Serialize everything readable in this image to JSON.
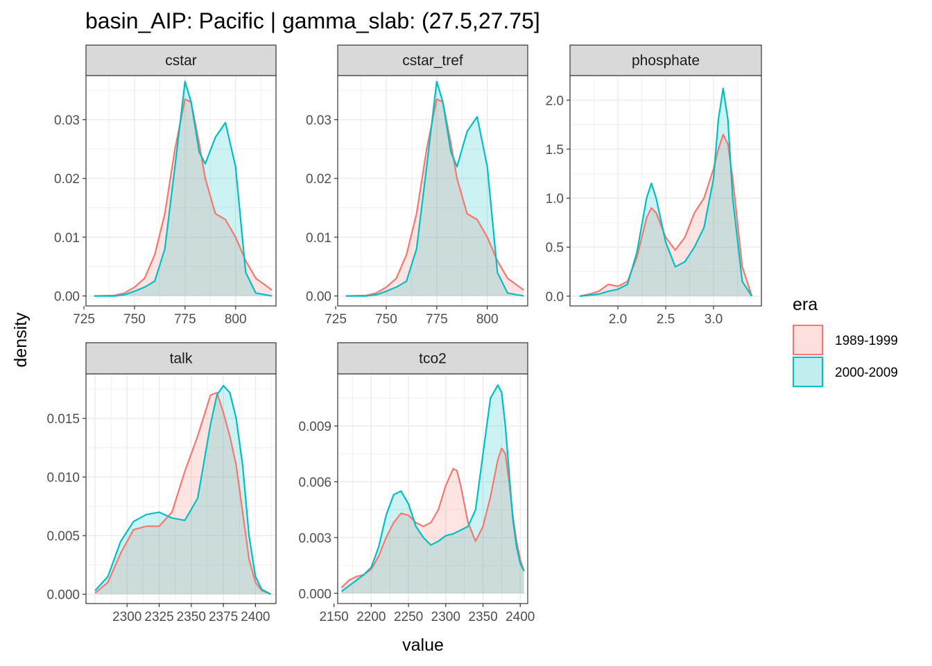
{
  "title": "basin_AIP: Pacific | gamma_slab: (27.5,27.75]",
  "axis_titles": {
    "x": "value",
    "y": "density"
  },
  "legend": {
    "title": "era",
    "placement": "right",
    "entries": [
      {
        "label": "1989-1999",
        "color": "#F8766D"
      },
      {
        "label": "2000-2009",
        "color": "#00BFC4"
      }
    ]
  },
  "chart_data": {
    "type": "area",
    "facets": [
      {
        "name": "cstar",
        "xlim": [
          726,
          820
        ],
        "ylim": [
          -0.0017,
          0.0375
        ],
        "xticks": [
          725,
          750,
          775,
          800
        ],
        "yticks": [
          0.0,
          0.01,
          0.02,
          0.03
        ],
        "ytick_labels": [
          "0.00",
          "0.01",
          "0.02",
          "0.03"
        ],
        "series": [
          {
            "name": "1989-1999",
            "x": [
              730,
              740,
              745,
              750,
              755,
              760,
              765,
              770,
              775,
              778,
              782,
              785,
              790,
              795,
              800,
              805,
              810,
              818
            ],
            "y": [
              0.0,
              0.0001,
              0.0005,
              0.0015,
              0.003,
              0.007,
              0.014,
              0.025,
              0.0335,
              0.033,
              0.026,
              0.02,
              0.014,
              0.013,
              0.01,
              0.006,
              0.003,
              0.001
            ]
          },
          {
            "name": "2000-2009",
            "x": [
              730,
              740,
              745,
              750,
              755,
              760,
              765,
              770,
              775,
              778,
              782,
              785,
              790,
              795,
              800,
              805,
              810,
              818
            ],
            "y": [
              0.0,
              0.0,
              0.0002,
              0.0008,
              0.0015,
              0.0025,
              0.008,
              0.022,
              0.0365,
              0.033,
              0.0245,
              0.0225,
              0.027,
              0.0295,
              0.022,
              0.004,
              0.0005,
              0.0
            ]
          }
        ]
      },
      {
        "name": "cstar_tref",
        "xlim": [
          726,
          820
        ],
        "ylim": [
          -0.0017,
          0.0375
        ],
        "xticks": [
          725,
          750,
          775,
          800
        ],
        "yticks": [
          0.0,
          0.01,
          0.02,
          0.03
        ],
        "ytick_labels": [
          "0.00",
          "0.01",
          "0.02",
          "0.03"
        ],
        "series": [
          {
            "name": "1989-1999",
            "x": [
              730,
              740,
              745,
              750,
              755,
              760,
              765,
              770,
              775,
              778,
              782,
              785,
              790,
              795,
              800,
              805,
              810,
              818
            ],
            "y": [
              0.0,
              0.0001,
              0.0005,
              0.0015,
              0.003,
              0.007,
              0.014,
              0.025,
              0.0335,
              0.033,
              0.026,
              0.02,
              0.014,
              0.013,
              0.01,
              0.006,
              0.003,
              0.001
            ]
          },
          {
            "name": "2000-2009",
            "x": [
              730,
              740,
              745,
              750,
              755,
              760,
              765,
              770,
              775,
              778,
              782,
              785,
              790,
              795,
              800,
              805,
              810,
              818
            ],
            "y": [
              0.0,
              0.0,
              0.0002,
              0.0008,
              0.0015,
              0.0025,
              0.008,
              0.022,
              0.0365,
              0.033,
              0.0245,
              0.022,
              0.028,
              0.0305,
              0.022,
              0.004,
              0.0005,
              0.0
            ]
          }
        ]
      },
      {
        "name": "phosphate",
        "xlim": [
          1.5,
          3.5
        ],
        "ylim": [
          -0.1,
          2.25
        ],
        "xticks": [
          2.0,
          2.5,
          3.0
        ],
        "yticks": [
          0.0,
          0.5,
          1.0,
          1.5,
          2.0
        ],
        "ytick_labels": [
          "0.0",
          "0.5",
          "1.0",
          "1.5",
          "2.0"
        ],
        "series": [
          {
            "name": "1989-1999",
            "x": [
              1.6,
              1.7,
              1.8,
              1.9,
              2.0,
              2.1,
              2.2,
              2.3,
              2.35,
              2.4,
              2.5,
              2.6,
              2.7,
              2.8,
              2.9,
              3.0,
              3.05,
              3.1,
              3.15,
              3.2,
              3.3,
              3.4
            ],
            "y": [
              0.0,
              0.02,
              0.05,
              0.12,
              0.1,
              0.15,
              0.4,
              0.8,
              0.9,
              0.85,
              0.6,
              0.47,
              0.6,
              0.85,
              1.0,
              1.3,
              1.5,
              1.65,
              1.55,
              1.2,
              0.3,
              0.0
            ]
          },
          {
            "name": "2000-2009",
            "x": [
              1.6,
              1.7,
              1.8,
              1.9,
              2.0,
              2.1,
              2.2,
              2.3,
              2.35,
              2.4,
              2.5,
              2.6,
              2.7,
              2.8,
              2.9,
              3.0,
              3.05,
              3.1,
              3.15,
              3.2,
              3.3,
              3.4
            ],
            "y": [
              0.0,
              0.01,
              0.02,
              0.05,
              0.07,
              0.12,
              0.45,
              1.0,
              1.15,
              1.0,
              0.55,
              0.3,
              0.35,
              0.5,
              0.7,
              1.2,
              1.8,
              2.12,
              1.8,
              1.0,
              0.15,
              0.0
            ]
          }
        ]
      },
      {
        "name": "talk",
        "xlim": [
          2268,
          2416
        ],
        "ylim": [
          -0.0008,
          0.0188
        ],
        "xticks": [
          2300,
          2325,
          2350,
          2375,
          2400
        ],
        "yticks": [
          0.0,
          0.005,
          0.01,
          0.015
        ],
        "ytick_labels": [
          "0.000",
          "0.005",
          "0.010",
          "0.015"
        ],
        "series": [
          {
            "name": "1989-1999",
            "x": [
              2275,
              2285,
              2295,
              2305,
              2315,
              2325,
              2335,
              2345,
              2355,
              2365,
              2370,
              2375,
              2380,
              2385,
              2390,
              2395,
              2400,
              2405,
              2412
            ],
            "y": [
              0.0001,
              0.001,
              0.0035,
              0.0055,
              0.0058,
              0.0058,
              0.007,
              0.0105,
              0.0135,
              0.017,
              0.0172,
              0.0155,
              0.0135,
              0.011,
              0.007,
              0.003,
              0.001,
              0.0003,
              0.0
            ]
          },
          {
            "name": "2000-2009",
            "x": [
              2275,
              2285,
              2295,
              2305,
              2315,
              2325,
              2335,
              2345,
              2355,
              2365,
              2370,
              2375,
              2380,
              2385,
              2390,
              2395,
              2400,
              2405,
              2412
            ],
            "y": [
              0.0003,
              0.0015,
              0.0045,
              0.0062,
              0.0068,
              0.007,
              0.0065,
              0.0063,
              0.0082,
              0.0145,
              0.017,
              0.0178,
              0.0172,
              0.015,
              0.011,
              0.005,
              0.0015,
              0.0004,
              0.0
            ]
          }
        ]
      },
      {
        "name": "tco2",
        "xlim": [
          2155,
          2410
        ],
        "ylim": [
          -0.00055,
          0.0118
        ],
        "xticks": [
          2150,
          2200,
          2250,
          2300,
          2350,
          2400
        ],
        "yticks": [
          0.0,
          0.003,
          0.006,
          0.009
        ],
        "ytick_labels": [
          "0.000",
          "0.003",
          "0.006",
          "0.009"
        ],
        "series": [
          {
            "name": "1989-1999",
            "x": [
              2160,
              2170,
              2180,
              2190,
              2200,
              2210,
              2220,
              2230,
              2240,
              2250,
              2260,
              2270,
              2280,
              2290,
              2300,
              2310,
              2315,
              2320,
              2330,
              2340,
              2350,
              2360,
              2370,
              2375,
              2380,
              2385,
              2390,
              2395,
              2400,
              2405
            ],
            "y": [
              0.0003,
              0.0007,
              0.0009,
              0.001,
              0.0013,
              0.002,
              0.003,
              0.0038,
              0.0043,
              0.0042,
              0.0038,
              0.0036,
              0.0038,
              0.0045,
              0.0058,
              0.0067,
              0.0066,
              0.0058,
              0.0038,
              0.0028,
              0.0036,
              0.0052,
              0.0072,
              0.0078,
              0.0075,
              0.006,
              0.0042,
              0.0028,
              0.0018,
              0.0012
            ]
          },
          {
            "name": "2000-2009",
            "x": [
              2160,
              2170,
              2180,
              2190,
              2200,
              2210,
              2220,
              2230,
              2240,
              2250,
              2260,
              2270,
              2280,
              2290,
              2300,
              2310,
              2315,
              2320,
              2330,
              2340,
              2350,
              2360,
              2370,
              2375,
              2380,
              2385,
              2390,
              2395,
              2400,
              2405
            ],
            "y": [
              0.0001,
              0.0004,
              0.0007,
              0.001,
              0.0014,
              0.0025,
              0.0042,
              0.0053,
              0.0055,
              0.0048,
              0.0036,
              0.003,
              0.0026,
              0.0028,
              0.0031,
              0.0032,
              0.0033,
              0.0034,
              0.0036,
              0.0045,
              0.0075,
              0.0105,
              0.0112,
              0.0108,
              0.009,
              0.0065,
              0.004,
              0.0025,
              0.0016,
              0.0012
            ]
          }
        ]
      }
    ]
  }
}
